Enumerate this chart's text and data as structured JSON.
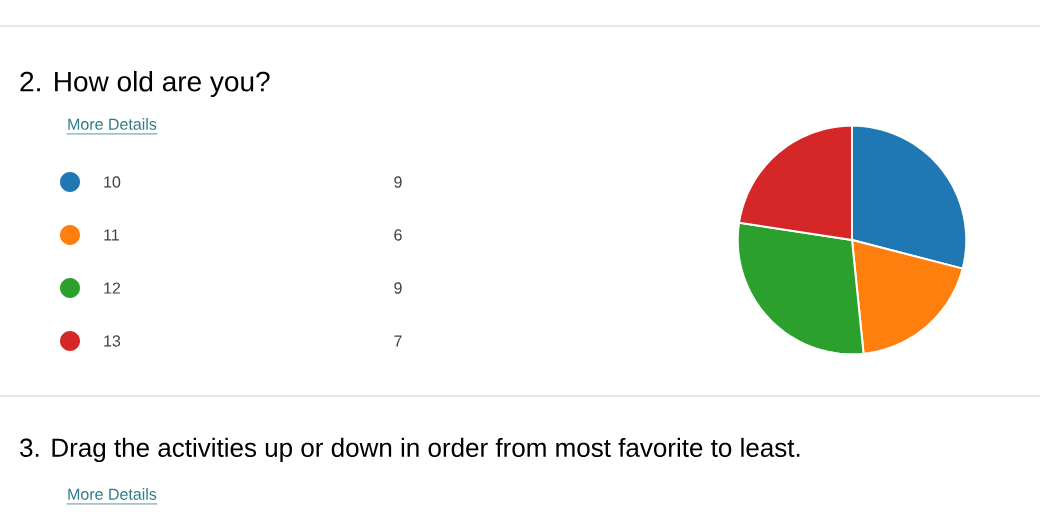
{
  "chart_data": {
    "type": "pie",
    "title": "2. How old are you?",
    "categories": [
      "10",
      "11",
      "12",
      "13"
    ],
    "values": [
      9,
      6,
      9,
      7
    ],
    "colors": [
      "#1f77b4",
      "#ff7f0e",
      "#2ca02c",
      "#d62728"
    ],
    "data_labels": true,
    "legend": "left",
    "annotations": [
      "More Details",
      "3. Drag the activities up or down in order from most favorite to least.",
      "More Details"
    ]
  }
}
